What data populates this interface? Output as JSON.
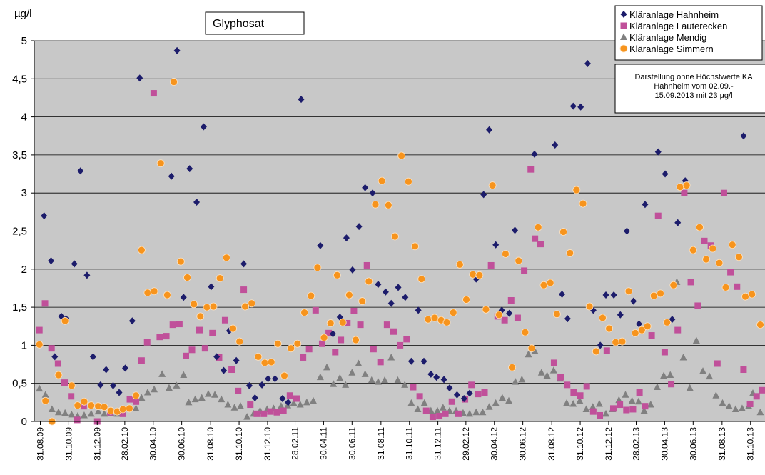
{
  "chart_data": {
    "type": "scatter",
    "title": "Glyphosat",
    "y_axis_label": "µg/l",
    "annotation": [
      "Darstellung ohne Höchstwerte KA",
      "Hahnheim vom 02.09.-",
      "15.09.2013 mit 23 µg/l"
    ],
    "xlim": [
      "18.08.09",
      "01.12.13"
    ],
    "xticks": [
      "31.08.09",
      "31.10.09",
      "31.12.09",
      "28.02.10",
      "30.04.10",
      "30.06.10",
      "31.08.10",
      "31.10.10",
      "31.12.10",
      "28.02.11",
      "30.04.11",
      "30.06.11",
      "31.08.11",
      "31.10.11",
      "31.12.11",
      "29.02.12",
      "30.04.12",
      "30.06.12",
      "31.08.12",
      "31.10.12",
      "31.12.12",
      "28.02.13",
      "30.04.13",
      "30.06.13",
      "31.08.13",
      "31.10.13"
    ],
    "ylim": [
      0,
      5
    ],
    "yticks": [
      0,
      {
        "value": 0.5,
        "label": "0,5"
      },
      1,
      {
        "value": 1.5,
        "label": "1,5"
      },
      2,
      {
        "value": 2.5,
        "label": "2,5"
      },
      3,
      {
        "value": 3.5,
        "label": "3,5"
      },
      4,
      {
        "value": 4.5,
        "label": "4,5"
      },
      5
    ],
    "grid": true,
    "legend": "top-right",
    "background": "#c8c8c8",
    "series": [
      {
        "name": "Kläranlage Hahnheim",
        "color": "#1c1c6b",
        "marker": "diamond",
        "x": [
          "08.09.09",
          "23.09.09",
          "01.10.09",
          "15.10.09",
          "25.10.09",
          "12.11.09",
          "25.11.09",
          "09.12.09",
          "22.12.09",
          "07.01.10",
          "19.01.10",
          "03.02.10",
          "16.02.10",
          "01.03.10",
          "16.03.10",
          "01.04.10",
          "08.06.10",
          "20.06.10",
          "04.07.10",
          "17.07.10",
          "01.08.10",
          "16.08.10",
          "01.09.10",
          "13.09.10",
          "28.09.10",
          "10.10.10",
          "25.10.10",
          "10.11.10",
          "22.11.10",
          "04.12.10",
          "19.12.10",
          "01.01.11",
          "16.01.11",
          "01.02.11",
          "13.02.11",
          "13.03.11",
          "23.04.11",
          "20.05.11",
          "04.06.11",
          "18.06.11",
          "01.07.11",
          "15.07.11",
          "28.07.11",
          "13.08.11",
          "25.08.11",
          "10.09.11",
          "22.09.11",
          "07.10.11",
          "22.10.11",
          "04.11.11",
          "19.11.11",
          "01.12.11",
          "16.12.11",
          "28.12.11",
          "13.01.12",
          "25.01.12",
          "10.02.12",
          "25.02.12",
          "08.03.12",
          "22.03.12",
          "07.04.12",
          "19.04.12",
          "03.05.12",
          "16.05.12",
          "01.06.12",
          "13.06.12",
          "25.07.12",
          "07.09.12",
          "22.09.12",
          "04.10.12",
          "16.10.12",
          "01.11.12",
          "16.11.12",
          "28.11.12",
          "13.12.12",
          "25.12.12",
          "11.01.13",
          "25.01.13",
          "08.02.13",
          "22.02.13",
          "06.03.13",
          "19.03.13",
          "16.04.13",
          "01.05.13",
          "16.05.13",
          "28.05.13",
          "13.06.13",
          "16.10.13"
        ],
        "values": [
          2.7,
          2.11,
          0.85,
          1.38,
          1.35,
          2.07,
          3.29,
          1.92,
          0.85,
          0.48,
          0.68,
          0.47,
          0.38,
          0.7,
          1.32,
          4.51,
          3.22,
          4.87,
          1.63,
          3.32,
          2.88,
          3.87,
          1.77,
          0.85,
          0.67,
          1.19,
          0.8,
          2.07,
          0.47,
          0.31,
          0.48,
          0.56,
          0.56,
          0.3,
          0.25,
          4.23,
          2.31,
          1.15,
          1.37,
          2.41,
          1.99,
          2.56,
          3.07,
          3.0,
          1.8,
          1.7,
          1.55,
          1.76,
          1.63,
          0.79,
          1.46,
          0.79,
          0.62,
          0.58,
          0.55,
          0.44,
          0.35,
          0.3,
          0.37,
          1.87,
          2.98,
          3.83,
          2.32,
          1.46,
          1.42,
          2.51,
          3.51,
          3.63,
          1.67,
          1.35,
          4.14,
          4.13,
          4.7,
          1.46,
          1.0,
          1.66,
          1.66,
          1.4,
          2.5,
          1.58,
          1.28,
          2.85,
          3.54,
          3.25,
          1.34,
          2.61,
          3.16,
          3.75
        ]
      },
      {
        "name": "Kläranlage Lauterecken",
        "color": "#c0509a",
        "marker": "square",
        "x": [
          "29.08.09",
          "10.09.09",
          "24.09.09",
          "08.10.09",
          "22.10.09",
          "05.11.09",
          "18.11.09",
          "02.12.09",
          "31.12.09",
          "28.01.10",
          "24.02.10",
          "11.03.10",
          "24.03.10",
          "05.04.10",
          "17.04.10",
          "01.05.10",
          "14.05.10",
          "28.05.10",
          "11.06.10",
          "25.06.10",
          "09.07.10",
          "22.07.10",
          "07.08.10",
          "19.08.10",
          "04.09.10",
          "18.09.10",
          "01.10.10",
          "15.10.10",
          "29.10.10",
          "10.11.10",
          "24.11.10",
          "08.12.10",
          "23.12.10",
          "06.01.11",
          "20.01.11",
          "03.02.11",
          "17.02.11",
          "03.03.11",
          "17.03.11",
          "30.03.11",
          "13.04.11",
          "27.04.11",
          "11.05.11",
          "25.05.11",
          "06.06.11",
          "20.06.11",
          "04.07.11",
          "18.07.11",
          "01.08.11",
          "15.08.11",
          "30.08.11",
          "13.09.11",
          "27.09.11",
          "11.10.11",
          "25.10.11",
          "08.11.11",
          "22.11.11",
          "06.12.11",
          "20.12.11",
          "03.01.12",
          "16.01.12",
          "30.01.12",
          "13.02.12",
          "27.02.12",
          "12.03.12",
          "26.03.12",
          "09.04.12",
          "23.04.12",
          "07.05.12",
          "22.05.12",
          "05.06.12",
          "19.06.12",
          "03.07.12",
          "17.07.12",
          "26.07.12",
          "07.08.12",
          "05.09.12",
          "19.09.12",
          "03.10.12",
          "17.10.12",
          "31.10.12",
          "14.11.12",
          "28.11.12",
          "12.12.12",
          "27.12.12",
          "10.01.13",
          "24.01.13",
          "07.02.13",
          "21.02.13",
          "07.03.13",
          "19.03.13",
          "02.04.13",
          "16.04.13",
          "30.04.13",
          "14.05.13",
          "28.05.13",
          "11.06.13",
          "25.06.13",
          "10.07.13",
          "24.07.13",
          "07.08.13",
          "21.08.13",
          "04.09.13",
          "18.09.13",
          "02.10.13",
          "16.10.13",
          "30.10.13",
          "13.11.13",
          "25.11.13"
        ],
        "values": [
          1.2,
          1.55,
          0.96,
          0.76,
          0.51,
          0.33,
          0.02,
          0.2,
          0.0,
          0.12,
          0.1,
          0.29,
          0.26,
          0.8,
          1.04,
          4.31,
          1.11,
          1.12,
          1.27,
          1.28,
          0.86,
          0.94,
          1.2,
          0.96,
          1.16,
          0.84,
          1.33,
          0.68,
          0.4,
          1.73,
          0.22,
          0.1,
          0.1,
          0.13,
          0.12,
          0.14,
          0.34,
          0.3,
          0.84,
          0.95,
          1.46,
          1.02,
          1.16,
          0.91,
          1.07,
          1.29,
          1.45,
          1.27,
          2.05,
          0.95,
          0.78,
          1.27,
          1.18,
          1.0,
          1.08,
          0.45,
          0.33,
          0.14,
          0.06,
          0.07,
          0.1,
          0.26,
          0.1,
          0.29,
          0.48,
          0.36,
          0.38,
          2.05,
          1.38,
          1.33,
          1.59,
          1.36,
          1.98,
          3.31,
          2.4,
          2.33,
          0.77,
          0.58,
          0.48,
          0.38,
          0.34,
          0.46,
          0.13,
          0.08,
          0.93,
          0.17,
          0.22,
          0.15,
          0.16,
          0.38,
          0.2,
          1.13,
          2.7,
          0.91,
          0.49,
          1.2,
          3.0,
          1.83,
          1.52,
          2.37,
          2.31,
          0.76,
          3.0,
          1.96,
          1.77,
          0.68,
          0.23,
          0.33,
          0.41
        ]
      },
      {
        "name": "Kläranlage Mendig",
        "color": "#808080",
        "marker": "triangle",
        "x": [
          "29.08.09",
          "11.09.09",
          "25.09.09",
          "09.10.09",
          "23.10.09",
          "06.11.09",
          "19.11.09",
          "03.12.09",
          "18.12.09",
          "02.01.10",
          "15.01.10",
          "29.01.10",
          "12.02.10",
          "24.02.10",
          "24.03.10",
          "05.04.10",
          "18.04.10",
          "02.05.10",
          "19.05.10",
          "03.06.10",
          "19.06.10",
          "04.07.10",
          "15.07.10",
          "29.07.10",
          "12.08.10",
          "26.08.10",
          "09.09.10",
          "23.09.10",
          "07.10.10",
          "21.10.10",
          "03.11.10",
          "17.11.10",
          "01.12.10",
          "15.12.10",
          "30.12.10",
          "13.01.11",
          "29.01.11",
          "12.02.11",
          "25.02.11",
          "11.03.11",
          "25.03.11",
          "08.04.11",
          "23.04.11",
          "07.05.11",
          "21.05.11",
          "04.06.11",
          "16.06.11",
          "30.06.11",
          "14.07.11",
          "28.07.11",
          "11.08.11",
          "25.08.11",
          "08.09.11",
          "22.09.11",
          "06.10.11",
          "21.10.11",
          "04.11.11",
          "18.11.11",
          "02.12.11",
          "16.12.11",
          "30.12.11",
          "11.01.12",
          "25.01.12",
          "08.02.12",
          "23.02.12",
          "08.03.12",
          "22.03.12",
          "05.04.12",
          "19.04.12",
          "03.05.12",
          "17.05.12",
          "31.05.12",
          "14.06.12",
          "28.06.12",
          "12.07.12",
          "26.07.12",
          "09.08.12",
          "21.08.12",
          "04.09.12",
          "18.09.12",
          "02.10.12",
          "16.10.12",
          "30.10.12",
          "13.11.12",
          "27.11.12",
          "11.12.12",
          "25.12.12",
          "08.01.13",
          "22.01.13",
          "05.02.13",
          "19.02.13",
          "05.03.13",
          "17.03.13",
          "31.03.13",
          "14.04.13",
          "28.04.13",
          "12.05.13",
          "26.05.13",
          "09.06.13",
          "23.06.13",
          "07.07.13",
          "21.07.13",
          "04.08.13",
          "18.08.13",
          "01.09.13",
          "15.09.13",
          "29.09.13",
          "13.10.13",
          "27.10.13",
          "05.11.13",
          "21.11.13"
        ],
        "values": [
          0.43,
          0.35,
          0.16,
          0.12,
          0.11,
          0.09,
          0.07,
          0.08,
          0.1,
          0.13,
          0.1,
          0.11,
          0.1,
          0.11,
          0.17,
          0.31,
          0.38,
          0.42,
          0.62,
          0.44,
          0.47,
          0.61,
          0.25,
          0.29,
          0.31,
          0.36,
          0.35,
          0.29,
          0.22,
          0.18,
          0.2,
          0.06,
          0.1,
          0.14,
          0.16,
          0.17,
          0.2,
          0.21,
          0.24,
          0.22,
          0.25,
          0.27,
          0.58,
          0.71,
          0.49,
          0.57,
          0.48,
          0.64,
          0.76,
          0.62,
          0.54,
          0.52,
          0.54,
          0.84,
          0.54,
          0.48,
          0.24,
          0.16,
          0.24,
          0.14,
          0.14,
          0.18,
          0.14,
          0.14,
          0.11,
          0.1,
          0.12,
          0.12,
          0.19,
          0.24,
          0.31,
          0.27,
          0.52,
          0.55,
          0.88,
          0.92,
          0.64,
          0.6,
          0.67,
          0.56,
          0.24,
          0.23,
          0.27,
          0.16,
          0.19,
          0.23,
          0.1,
          0.16,
          0.28,
          0.35,
          0.27,
          0.26,
          0.14,
          0.22,
          0.45,
          0.6,
          0.61,
          1.83,
          0.84,
          0.44,
          1.06,
          0.66,
          0.59,
          0.34,
          0.24,
          0.2,
          0.16,
          0.17,
          0.2,
          0.37,
          0.12
        ]
      },
      {
        "name": "Kläranlage Simmern",
        "color": "#f7941d",
        "marker": "circle",
        "x": [
          "29.08.09",
          "11.09.09",
          "25.09.09",
          "09.10.09",
          "23.10.09",
          "06.11.09",
          "19.11.09",
          "03.12.09",
          "18.12.09",
          "02.01.10",
          "15.01.10",
          "29.01.10",
          "12.02.10",
          "24.02.10",
          "10.03.10",
          "24.03.10",
          "05.04.10",
          "18.04.10",
          "02.05.10",
          "16.05.10",
          "30.05.10",
          "13.06.10",
          "28.06.10",
          "12.07.10",
          "26.07.10",
          "09.08.10",
          "23.08.10",
          "06.09.10",
          "20.09.10",
          "04.10.10",
          "18.10.10",
          "01.11.10",
          "13.11.10",
          "27.11.10",
          "11.12.10",
          "25.12.10",
          "08.01.11",
          "22.01.11",
          "05.02.11",
          "19.02.11",
          "05.03.11",
          "20.03.11",
          "03.04.11",
          "17.04.11",
          "01.05.11",
          "15.05.11",
          "29.05.11",
          "10.06.11",
          "24.06.11",
          "08.07.11",
          "22.07.11",
          "05.08.11",
          "19.08.11",
          "02.09.11",
          "16.09.11",
          "30.09.11",
          "14.10.11",
          "29.10.11",
          "12.11.11",
          "26.11.11",
          "10.12.11",
          "24.12.11",
          "07.01.12",
          "19.01.12",
          "02.02.12",
          "16.02.12",
          "01.03.12",
          "15.03.12",
          "29.03.12",
          "12.04.12",
          "26.04.12",
          "10.05.12",
          "24.05.12",
          "07.06.12",
          "21.06.12",
          "05.07.12",
          "19.07.12",
          "02.08.12",
          "14.08.12",
          "28.08.12",
          "11.09.12",
          "25.09.12",
          "09.10.12",
          "23.10.12",
          "06.11.12",
          "20.11.12",
          "04.12.12",
          "18.12.12",
          "01.01.13",
          "15.01.13",
          "29.01.13",
          "12.02.13",
          "26.02.13",
          "12.03.13",
          "24.03.13",
          "07.04.13",
          "21.04.13",
          "05.05.13",
          "19.05.13",
          "02.06.13",
          "16.06.13",
          "30.06.13",
          "14.07.13",
          "28.07.13",
          "11.08.13",
          "25.08.13",
          "08.09.13",
          "22.09.13",
          "06.10.13",
          "20.10.13",
          "03.11.13",
          "21.11.13"
        ],
        "values": [
          1.01,
          0.27,
          0.0,
          0.61,
          1.32,
          0.47,
          0.21,
          0.26,
          0.21,
          0.2,
          0.19,
          0.14,
          0.13,
          0.16,
          0.17,
          0.34,
          2.25,
          1.69,
          1.71,
          3.39,
          1.66,
          4.46,
          2.1,
          1.89,
          1.54,
          1.38,
          1.5,
          1.51,
          1.88,
          2.15,
          1.22,
          1.05,
          1.51,
          1.55,
          0.85,
          0.77,
          0.78,
          1.02,
          0.6,
          0.96,
          1.02,
          1.43,
          1.65,
          2.02,
          1.1,
          1.29,
          1.92,
          1.3,
          1.66,
          1.07,
          1.58,
          1.84,
          2.85,
          3.16,
          2.84,
          2.43,
          3.49,
          3.15,
          2.3,
          1.87,
          1.34,
          1.36,
          1.33,
          1.3,
          1.43,
          2.06,
          1.6,
          1.93,
          1.92,
          1.47,
          3.1,
          1.4,
          2.2,
          0.71,
          2.11,
          1.17,
          0.96,
          2.55,
          1.79,
          1.82,
          1.41,
          2.49,
          2.21,
          3.04,
          2.86,
          1.51,
          0.92,
          1.36,
          1.22,
          1.04,
          1.05,
          1.71,
          1.16,
          1.2,
          1.25,
          1.65,
          1.68,
          1.3,
          1.79,
          3.08,
          3.1,
          2.25,
          2.55,
          2.13,
          2.27,
          2.08,
          1.76,
          2.32,
          2.16,
          1.64,
          1.67,
          1.27
        ]
      }
    ]
  }
}
